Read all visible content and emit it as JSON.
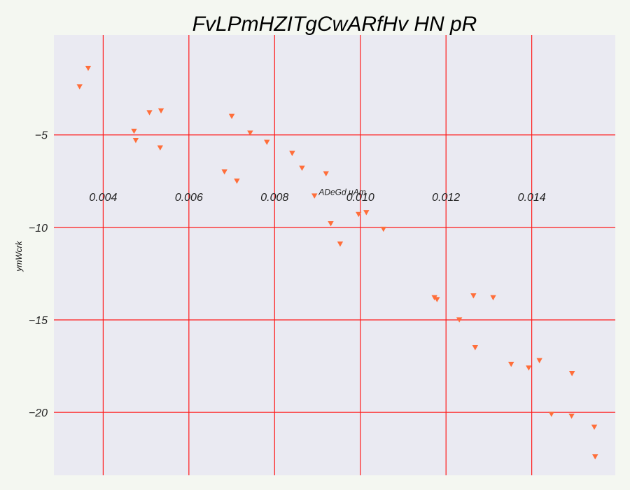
{
  "chart_data": {
    "type": "scatter",
    "title": "FvLPmHZITgCwARfHv HN pR",
    "xlabel": "",
    "ylabel": "ymWcrk",
    "xlim": [
      0.00285,
      0.01595
    ],
    "ylim": [
      -23.4,
      0.4
    ],
    "x_ticks": [
      0.004,
      0.006,
      0.008,
      0.01,
      0.012,
      0.014
    ],
    "x_tick_labels": [
      "0.004",
      "0.006",
      "0.008",
      "0.010",
      "0.012",
      "0.014"
    ],
    "y_ticks": [
      -5,
      -10,
      -15,
      -20
    ],
    "y_tick_labels": [
      "−5",
      "−10",
      "−15",
      "−20"
    ],
    "grid": true,
    "grid_color": "#ff1a1a",
    "plot_background": "#eaeaf2",
    "marker": "triangle-down",
    "marker_color": "#ff6e3a",
    "annotation": {
      "text": "ADeGd uAm",
      "x": 0.00958,
      "y": -8.1
    },
    "series": [
      {
        "x": [
          0.00345,
          0.00365,
          0.00472,
          0.00476,
          0.00508,
          0.00533,
          0.00535,
          0.00683,
          0.007,
          0.00712,
          0.00743,
          0.00782,
          0.00841,
          0.00864,
          0.00893,
          0.0092,
          0.00931,
          0.00953,
          0.00996,
          0.01014,
          0.01054,
          0.01173,
          0.01179,
          0.01231,
          0.01264,
          0.01268,
          0.0131,
          0.01352,
          0.01393,
          0.01418,
          0.01446,
          0.01493,
          0.01494,
          0.01546,
          0.01548
        ],
        "y": [
          -2.4,
          -1.4,
          -4.8,
          -5.3,
          -3.8,
          -5.7,
          -3.7,
          -7.0,
          -4.0,
          -7.5,
          -4.9,
          -5.4,
          -6.0,
          -6.8,
          -8.3,
          -7.1,
          -9.8,
          -10.9,
          -9.3,
          -9.2,
          -10.1,
          -13.8,
          -13.9,
          -15.0,
          -13.7,
          -16.5,
          -13.8,
          -17.4,
          -17.6,
          -17.2,
          -20.1,
          -20.2,
          -17.9,
          -20.8,
          -22.4
        ]
      }
    ]
  }
}
